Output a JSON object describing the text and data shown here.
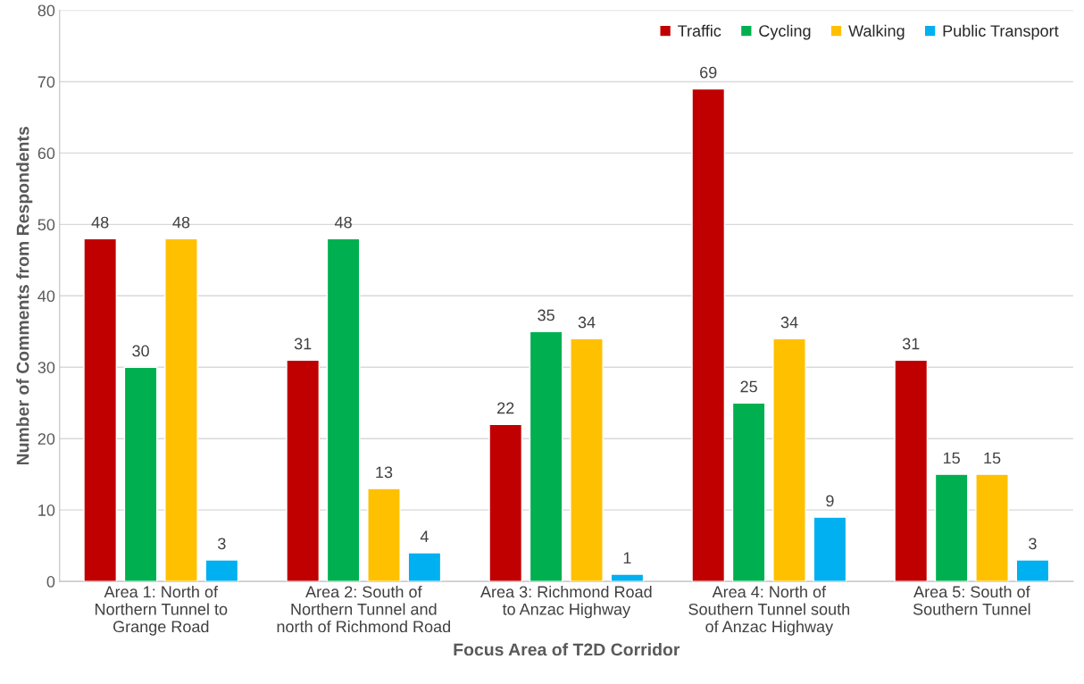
{
  "chart_data": {
    "type": "bar",
    "xlabel": "Focus Area of T2D Corridor",
    "ylabel": "Number of Comments from Respondents",
    "categories": [
      "Area 1: North of\nNorthern Tunnel to\nGrange Road",
      "Area 2: South of\nNorthern Tunnel and\nnorth of Richmond Road",
      "Area 3: Richmond Road\nto Anzac Highway",
      "Area 4: North of\nSouthern Tunnel south\nof Anzac Highway",
      "Area 5: South of\nSouthern Tunnel"
    ],
    "series": [
      {
        "name": "Traffic",
        "color": "#c00000",
        "values": [
          48,
          31,
          22,
          69,
          31
        ]
      },
      {
        "name": "Cycling",
        "color": "#00b050",
        "values": [
          30,
          48,
          35,
          25,
          15
        ]
      },
      {
        "name": "Walking",
        "color": "#ffc000",
        "values": [
          48,
          13,
          34,
          34,
          15
        ]
      },
      {
        "name": "Public Transport",
        "color": "#00b0f0",
        "values": [
          3,
          4,
          1,
          9,
          3
        ]
      }
    ],
    "ylim": [
      0,
      80
    ],
    "yticks": [
      0,
      10,
      20,
      30,
      40,
      50,
      60,
      70,
      80
    ],
    "grid": "y",
    "legend": "top right",
    "data_labels": true
  }
}
